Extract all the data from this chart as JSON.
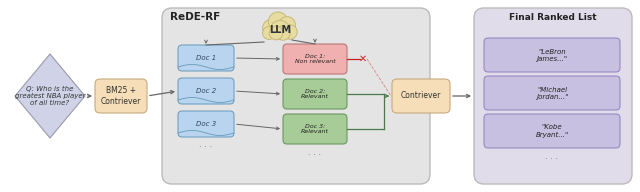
{
  "bg_color": "#ffffff",
  "fig_width": 6.4,
  "fig_height": 1.92,
  "dpi": 100,
  "query_text": "Q: Who is the\ngreatest NBA player\nof all time?",
  "bm25_text": "BM25 +\nContriever",
  "llm_text": "LLM",
  "contriever_text": "Contriever",
  "final_ranked_title": "Final Ranked List",
  "doc_list_labels": [
    "Doc 1",
    "Doc 2",
    "Doc 3"
  ],
  "doc_relevance_labels": [
    "Doc 1:\nNon relevant",
    "Doc 2:\nRelevant",
    "Doc 3:\nRelevant"
  ],
  "final_list_labels": [
    "\"LeBron\nJames...\"",
    "\"Michael\nJordan...\"",
    "\"Kobe\nBryant...\""
  ],
  "rederf_label": "ReDE-RF",
  "diamond_color": "#d0d3e8",
  "bm25_box_color": "#f5deb8",
  "doc_blue_color": "#b8d4ee",
  "doc_nonrel_color": "#f0b0b0",
  "doc_rel_color": "#a8cc98",
  "contriever_box_color": "#f5deb8",
  "final_box_color": "#c8c0e0",
  "rederf_bg_color": "#e4e4e4",
  "final_ranked_bg_color": "#e0dcea",
  "llm_cloud_color": "#e8dda0",
  "llm_cloud_edge": "#c8b878",
  "arrow_color": "#666666",
  "red_color": "#cc2222",
  "green_color": "#4a7a4a",
  "dark_line": "#888888"
}
